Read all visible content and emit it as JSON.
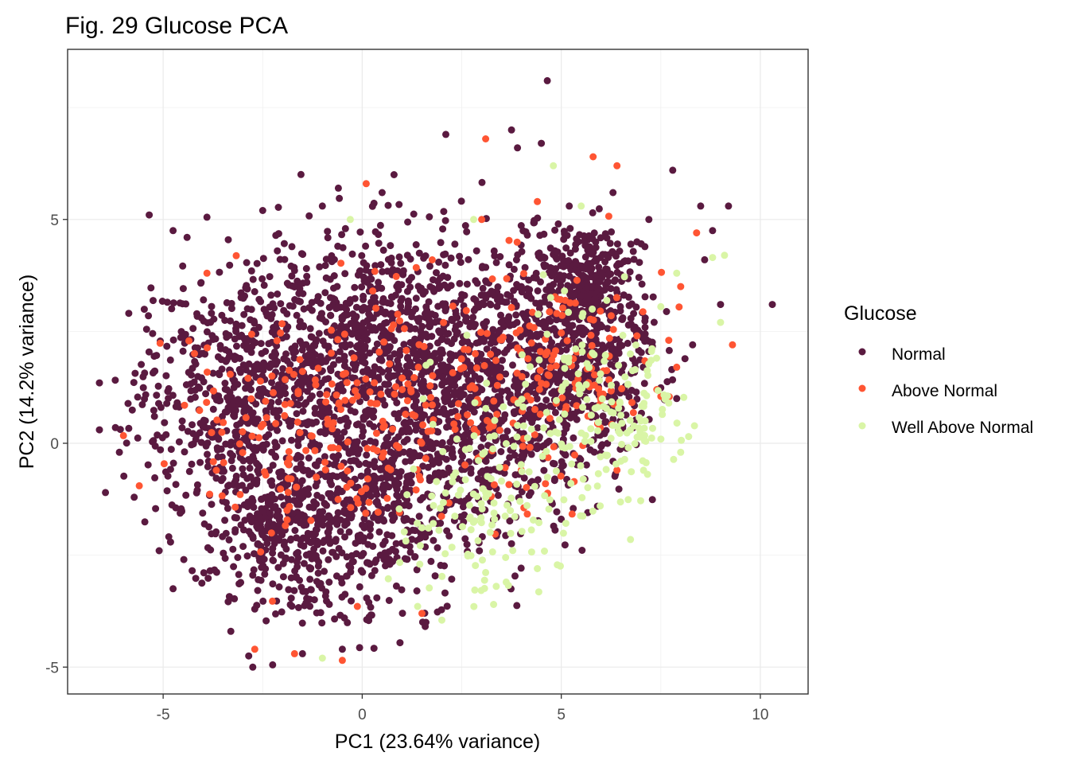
{
  "chart_data": {
    "type": "scatter",
    "title": "Fig. 29 Glucose PCA",
    "xlabel": "PC1 (23.64% variance)",
    "ylabel": "PC2 (14.2% variance)",
    "xlim": [
      -7.4,
      11.2
    ],
    "ylim": [
      -5.6,
      8.8
    ],
    "x_ticks": [
      -5,
      0,
      5,
      10
    ],
    "x_tick_labels": [
      "-5",
      "0",
      "5",
      "10"
    ],
    "y_ticks": [
      -5,
      0,
      5
    ],
    "y_tick_labels": [
      "-5",
      "0",
      "5"
    ],
    "grid": true,
    "legend": {
      "title": "Glucose",
      "position": "right",
      "entries": [
        "Normal",
        "Above Normal",
        "Well Above Normal"
      ]
    },
    "series": [
      {
        "name": "Normal",
        "color": "#5a1a40",
        "points": [
          [
            4.65,
            8.1
          ],
          [
            2.1,
            6.9
          ],
          [
            3.75,
            7.0
          ],
          [
            -5.35,
            5.1
          ],
          [
            9.2,
            5.3
          ],
          [
            10.3,
            3.1
          ],
          [
            -6.6,
            1.35
          ],
          [
            -6.6,
            0.3
          ],
          [
            -6.45,
            -1.1
          ],
          [
            -4.75,
            -3.25
          ],
          [
            -2.75,
            -5.0
          ],
          [
            -2.25,
            -4.95
          ],
          [
            -2.85,
            -4.75
          ],
          [
            -0.5,
            -4.6
          ],
          [
            8.8,
            4.75
          ],
          [
            7.8,
            6.1
          ],
          [
            8.5,
            5.3
          ],
          [
            8.6,
            4.1
          ],
          [
            9.0,
            3.1
          ],
          [
            -4.4,
            4.6
          ],
          [
            -4.75,
            4.75
          ],
          [
            -3.9,
            5.05
          ],
          [
            0.8,
            6.0
          ],
          [
            3.9,
            6.6
          ],
          [
            4.5,
            6.7
          ],
          [
            5.2,
            5.3
          ],
          [
            6.3,
            5.6
          ],
          [
            -2.5,
            5.2
          ],
          [
            -1.0,
            5.3
          ],
          [
            0.5,
            5.6
          ],
          [
            7.2,
            5.0
          ],
          [
            -6.2,
            0.35
          ],
          [
            -6.1,
            -0.2
          ],
          [
            -5.1,
            -2.4
          ],
          [
            -3.3,
            -4.2
          ],
          [
            -1.5,
            -4.7
          ],
          [
            1.6,
            -4.0
          ],
          [
            8.3,
            2.2
          ],
          [
            7.9,
            1.0
          ],
          [
            -0.6,
            5.7
          ],
          [
            6.9,
            4.5
          ]
        ],
        "cloud": [
          {
            "cx": -3.6,
            "cy": 0.9,
            "rx": 2.7,
            "ry": 2.4
          },
          {
            "cx": -1.6,
            "cy": 1.9,
            "rx": 2.5,
            "ry": 2.3
          },
          {
            "cx": 0.6,
            "cy": 2.4,
            "rx": 2.4,
            "ry": 2.2
          },
          {
            "cx": 2.5,
            "cy": 2.1,
            "rx": 2.2,
            "ry": 2.1
          },
          {
            "cx": -2.0,
            "cy": -1.8,
            "rx": 2.5,
            "ry": 2.0
          },
          {
            "cx": 0.2,
            "cy": -1.2,
            "rx": 2.4,
            "ry": 2.3
          },
          {
            "cx": 3.2,
            "cy": 0.0,
            "rx": 2.4,
            "ry": 2.2
          },
          {
            "cx": 5.3,
            "cy": 1.6,
            "rx": 1.9,
            "ry": 1.7
          },
          {
            "cx": 5.5,
            "cy": 3.5,
            "rx": 1.5,
            "ry": 1.2
          }
        ]
      },
      {
        "name": "Above Normal",
        "color": "#ff5533",
        "points": [
          [
            3.1,
            6.8
          ],
          [
            5.8,
            6.4
          ],
          [
            6.4,
            6.2
          ],
          [
            8.4,
            4.7
          ],
          [
            9.3,
            2.2
          ],
          [
            -5.6,
            -0.95
          ],
          [
            -0.5,
            -4.85
          ],
          [
            7.9,
            1.7
          ],
          [
            7.7,
            2.3
          ],
          [
            8.0,
            3.5
          ],
          [
            0.1,
            5.8
          ],
          [
            4.4,
            5.4
          ],
          [
            -3.9,
            3.8
          ],
          [
            3.0,
            5.0
          ],
          [
            1.5,
            -3.8
          ],
          [
            6.4,
            -0.6
          ],
          [
            -2.7,
            -4.6
          ],
          [
            7.4,
            1.2
          ],
          [
            6.9,
            2.4
          ],
          [
            -1.7,
            -4.7
          ]
        ],
        "cloud": [
          {
            "cx": 3.2,
            "cy": 0.6,
            "rx": 3.0,
            "ry": 2.6
          },
          {
            "cx": 5.4,
            "cy": 1.8,
            "rx": 2.0,
            "ry": 1.8
          },
          {
            "cx": 0.8,
            "cy": 1.5,
            "rx": 2.8,
            "ry": 2.5
          },
          {
            "cx": -1.6,
            "cy": 0.2,
            "rx": 2.6,
            "ry": 2.4
          }
        ]
      },
      {
        "name": "Well Above Normal",
        "color": "#d9f5a6",
        "points": [
          [
            9.1,
            4.2
          ],
          [
            8.8,
            4.15
          ],
          [
            9.0,
            2.7
          ],
          [
            8.2,
            0.15
          ],
          [
            7.9,
            3.8
          ],
          [
            7.5,
            3.05
          ],
          [
            4.8,
            6.2
          ],
          [
            5.5,
            5.3
          ],
          [
            -1.0,
            -4.8
          ],
          [
            2.0,
            -3.95
          ],
          [
            4.4,
            -2.8
          ],
          [
            7.0,
            0.5
          ],
          [
            7.7,
            0.9
          ],
          [
            8.0,
            -0.2
          ],
          [
            3.3,
            -3.6
          ],
          [
            -0.3,
            5.0
          ],
          [
            2.8,
            5.0
          ],
          [
            6.5,
            -0.4
          ]
        ],
        "cloud": [
          {
            "cx": 4.3,
            "cy": -0.3,
            "rx": 2.5,
            "ry": 2.2
          },
          {
            "cx": 5.8,
            "cy": 1.5,
            "rx": 1.7,
            "ry": 1.7
          },
          {
            "cx": 2.6,
            "cy": -1.8,
            "rx": 2.0,
            "ry": 1.8
          },
          {
            "cx": 6.6,
            "cy": 0.4,
            "rx": 1.2,
            "ry": 1.1
          }
        ]
      }
    ]
  }
}
